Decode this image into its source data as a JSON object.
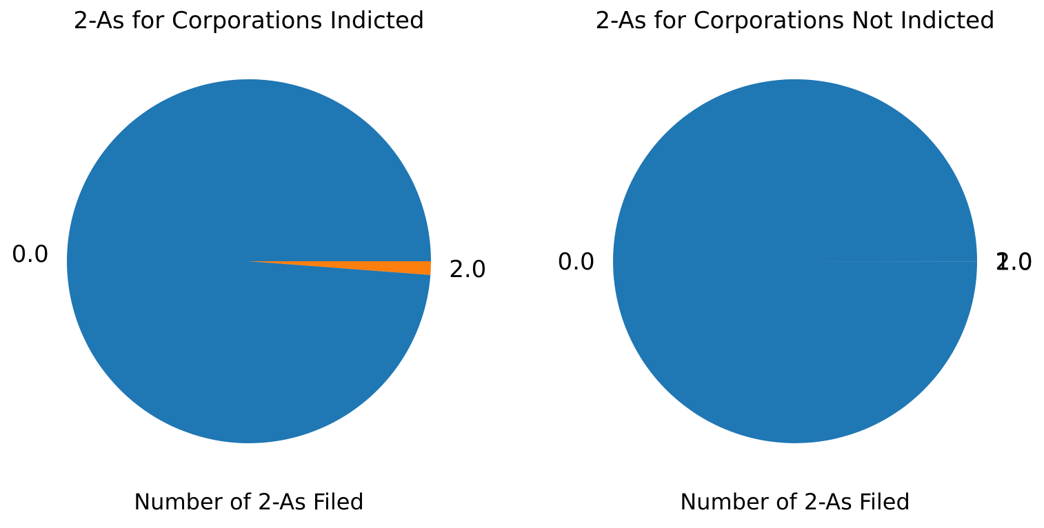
{
  "chart_data": [
    {
      "type": "pie",
      "title": "2-As for Corporations Indicted",
      "xlabel": "Number of 2-As Filed",
      "categories": [
        "0.0",
        "2.0"
      ],
      "values": [
        98.8,
        1.2
      ],
      "colors": [
        "#1f77b4",
        "#ff7f0e"
      ]
    },
    {
      "type": "pie",
      "title": "2-As for Corporations Not Indicted",
      "xlabel": "Number of 2-As Filed",
      "categories": [
        "0.0",
        "1.0",
        "2.0"
      ],
      "values": [
        99.98,
        0.01,
        0.01
      ],
      "colors": [
        "#1f77b4",
        "#1f77b4",
        "#1f77b4"
      ]
    }
  ]
}
